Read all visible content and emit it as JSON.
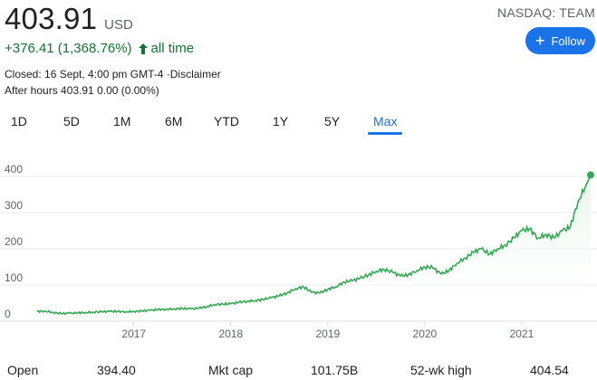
{
  "quote": {
    "price": "403.91",
    "currency": "USD",
    "change": "+376.41 (1,368.76%)",
    "period": "all time",
    "closed": "Closed: 16 Sept, 4:00 pm GMT-4 ·Disclaimer",
    "after_hours": "After hours 403.91 0.00 (0.00%)",
    "ticker": "NASDAQ: TEAM"
  },
  "follow": {
    "label": "Follow",
    "icon": "plus-icon",
    "color": "#1a73e8"
  },
  "ranges": [
    "1D",
    "5D",
    "1M",
    "6M",
    "YTD",
    "1Y",
    "5Y",
    "Max"
  ],
  "active_range": "Max",
  "chart_data": {
    "type": "area",
    "series": [
      {
        "values": [
          [
            2016.0,
            27
          ],
          [
            2016.08,
            28
          ],
          [
            2016.17,
            24
          ],
          [
            2016.25,
            21
          ],
          [
            2016.33,
            22
          ],
          [
            2016.42,
            23
          ],
          [
            2016.5,
            24
          ],
          [
            2016.58,
            25
          ],
          [
            2016.67,
            26
          ],
          [
            2016.75,
            27
          ],
          [
            2016.83,
            27
          ],
          [
            2016.92,
            26
          ],
          [
            2017.0,
            27
          ],
          [
            2017.08,
            28
          ],
          [
            2017.17,
            30
          ],
          [
            2017.25,
            32
          ],
          [
            2017.33,
            33
          ],
          [
            2017.42,
            34
          ],
          [
            2017.5,
            35
          ],
          [
            2017.58,
            34
          ],
          [
            2017.67,
            36
          ],
          [
            2017.75,
            40
          ],
          [
            2017.83,
            46
          ],
          [
            2017.92,
            47
          ],
          [
            2018.0,
            48
          ],
          [
            2018.08,
            52
          ],
          [
            2018.17,
            55
          ],
          [
            2018.25,
            57
          ],
          [
            2018.33,
            60
          ],
          [
            2018.42,
            65
          ],
          [
            2018.5,
            70
          ],
          [
            2018.58,
            78
          ],
          [
            2018.67,
            90
          ],
          [
            2018.75,
            95
          ],
          [
            2018.83,
            80
          ],
          [
            2018.92,
            78
          ],
          [
            2019.0,
            88
          ],
          [
            2019.08,
            95
          ],
          [
            2019.17,
            108
          ],
          [
            2019.25,
            112
          ],
          [
            2019.33,
            118
          ],
          [
            2019.42,
            128
          ],
          [
            2019.5,
            138
          ],
          [
            2019.58,
            143
          ],
          [
            2019.67,
            135
          ],
          [
            2019.75,
            125
          ],
          [
            2019.83,
            128
          ],
          [
            2019.92,
            140
          ],
          [
            2020.0,
            150
          ],
          [
            2020.08,
            148
          ],
          [
            2020.17,
            130
          ],
          [
            2020.25,
            140
          ],
          [
            2020.33,
            160
          ],
          [
            2020.42,
            175
          ],
          [
            2020.5,
            190
          ],
          [
            2020.58,
            200
          ],
          [
            2020.67,
            185
          ],
          [
            2020.75,
            200
          ],
          [
            2020.83,
            210
          ],
          [
            2020.92,
            230
          ],
          [
            2021.0,
            250
          ],
          [
            2021.08,
            255
          ],
          [
            2021.17,
            230
          ],
          [
            2021.25,
            240
          ],
          [
            2021.33,
            230
          ],
          [
            2021.42,
            250
          ],
          [
            2021.5,
            260
          ],
          [
            2021.58,
            330
          ],
          [
            2021.67,
            380
          ],
          [
            2021.71,
            403.91
          ]
        ]
      }
    ],
    "x_ticks": [
      "2017",
      "2018",
      "2019",
      "2020",
      "2021"
    ],
    "x_tick_values": [
      2017,
      2018,
      2019,
      2020,
      2021
    ],
    "y_ticks": [
      "0",
      "100",
      "200",
      "300",
      "400"
    ],
    "y_tick_values": [
      0,
      100,
      200,
      300,
      400
    ],
    "xlim": [
      2015.9,
      2021.72
    ],
    "ylim": [
      0,
      420
    ],
    "grid": true,
    "line_color": "#34a853",
    "fill_color": "#e6f4ea",
    "grid_color": "#ebebeb"
  },
  "stats": {
    "open_label": "Open",
    "open_value": "394.40",
    "mktcap_label": "Mkt cap",
    "mktcap_value": "101.75B",
    "high_label": "52-wk high",
    "high_value": "404.54"
  }
}
